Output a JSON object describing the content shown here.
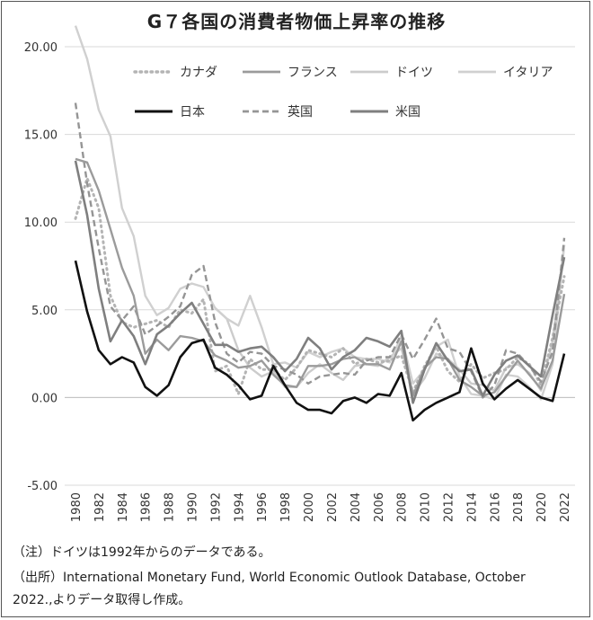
{
  "notes": {
    "note1": "（注）ドイツは1992年からのデータである。",
    "note2": "（出所）International Monetary Fund, World Economic Outlook Database, October",
    "note3": "2022.,よりデータ取得し作成。"
  },
  "chart_data": {
    "type": "line",
    "title": "G７各国の消費者物価上昇率の推移",
    "xlabel": "",
    "ylabel": "",
    "ylim": [
      -5,
      20
    ],
    "yticks": [
      "20.00",
      "15.00",
      "10.00",
      "5.00",
      "0.00",
      "-5.00"
    ],
    "xticks": [
      "1980",
      "1982",
      "1984",
      "1986",
      "1988",
      "1990",
      "1992",
      "1994",
      "1996",
      "1998",
      "2000",
      "2002",
      "2004",
      "2006",
      "2008",
      "2010",
      "2012",
      "2014",
      "2016",
      "2018",
      "2020",
      "2022"
    ],
    "x": [
      1980,
      1981,
      1982,
      1983,
      1984,
      1985,
      1986,
      1987,
      1988,
      1989,
      1990,
      1991,
      1992,
      1993,
      1994,
      1995,
      1996,
      1997,
      1998,
      1999,
      2000,
      2001,
      2002,
      2003,
      2004,
      2005,
      2006,
      2007,
      2008,
      2009,
      2010,
      2011,
      2012,
      2013,
      2014,
      2015,
      2016,
      2017,
      2018,
      2019,
      2020,
      2021,
      2022
    ],
    "series": [
      {
        "name": "カナダ",
        "color": "#b4b4b4",
        "dash": "dot",
        "width": 3,
        "values": [
          10.2,
          12.5,
          10.8,
          5.8,
          4.3,
          4.0,
          4.2,
          4.4,
          4.0,
          5.0,
          4.8,
          5.6,
          1.5,
          1.8,
          0.2,
          2.2,
          1.6,
          1.6,
          1.0,
          1.7,
          2.7,
          2.5,
          2.3,
          2.8,
          1.9,
          2.2,
          2.0,
          2.1,
          2.4,
          0.3,
          1.8,
          2.9,
          1.5,
          0.9,
          1.9,
          1.1,
          1.4,
          1.6,
          2.3,
          1.9,
          0.7,
          3.4,
          6.9
        ]
      },
      {
        "name": "フランス",
        "color": "#9b9b9b",
        "dash": "solid",
        "width": 2.4,
        "values": [
          13.6,
          13.4,
          11.8,
          9.6,
          7.4,
          5.8,
          2.5,
          3.3,
          2.7,
          3.5,
          3.4,
          3.2,
          2.4,
          2.1,
          1.7,
          1.8,
          2.1,
          1.3,
          0.7,
          0.6,
          1.8,
          1.8,
          1.9,
          2.2,
          2.3,
          1.9,
          1.9,
          1.6,
          3.2,
          0.1,
          1.7,
          2.3,
          2.2,
          1.0,
          0.6,
          0.1,
          0.3,
          1.2,
          2.1,
          1.3,
          0.5,
          2.1,
          5.9
        ]
      },
      {
        "name": "ドイツ",
        "color": "#cccccc",
        "dash": "solid",
        "width": 2.4,
        "values": [
          null,
          null,
          null,
          null,
          null,
          null,
          null,
          null,
          null,
          null,
          null,
          null,
          5.1,
          4.5,
          2.7,
          1.7,
          1.2,
          1.5,
          0.6,
          0.6,
          1.4,
          1.9,
          1.4,
          1.0,
          1.8,
          1.9,
          1.8,
          2.3,
          2.8,
          0.2,
          1.1,
          2.5,
          2.2,
          1.6,
          0.8,
          0.7,
          0.4,
          1.7,
          1.9,
          1.4,
          0.4,
          3.2,
          8.7
        ]
      },
      {
        "name": "イタリア",
        "color": "#d0d0d0",
        "dash": "solid",
        "width": 2.4,
        "values": [
          21.2,
          19.3,
          16.4,
          14.9,
          10.8,
          9.2,
          5.8,
          4.7,
          5.1,
          6.2,
          6.5,
          6.3,
          5.1,
          4.5,
          4.1,
          5.8,
          4.0,
          1.9,
          2.0,
          1.7,
          2.6,
          2.3,
          2.6,
          2.8,
          2.3,
          2.2,
          2.2,
          2.0,
          3.5,
          0.8,
          1.6,
          2.9,
          3.3,
          1.2,
          0.2,
          0.1,
          -0.1,
          1.3,
          1.2,
          0.6,
          -0.1,
          1.9,
          8.7
        ]
      },
      {
        "name": "日本",
        "color": "#111111",
        "dash": "solid",
        "width": 2.6,
        "values": [
          7.8,
          4.9,
          2.7,
          1.9,
          2.3,
          2.0,
          0.6,
          0.1,
          0.7,
          2.3,
          3.1,
          3.3,
          1.7,
          1.3,
          0.7,
          -0.1,
          0.1,
          1.8,
          0.7,
          -0.3,
          -0.7,
          -0.7,
          -0.9,
          -0.2,
          0.0,
          -0.3,
          0.2,
          0.1,
          1.4,
          -1.3,
          -0.7,
          -0.3,
          0.0,
          0.3,
          2.8,
          0.8,
          -0.1,
          0.5,
          1.0,
          0.5,
          0.0,
          -0.2,
          2.5
        ]
      },
      {
        "name": "英国",
        "color": "#959595",
        "dash": "dash",
        "width": 2.4,
        "values": [
          16.8,
          12.2,
          8.5,
          5.2,
          4.4,
          5.2,
          3.6,
          4.1,
          4.6,
          5.2,
          7.0,
          7.5,
          4.3,
          2.5,
          2.0,
          2.6,
          2.5,
          1.8,
          1.6,
          1.3,
          0.8,
          1.2,
          1.3,
          1.4,
          1.3,
          2.1,
          2.3,
          2.3,
          3.6,
          2.2,
          3.3,
          4.5,
          2.8,
          2.6,
          1.5,
          0.0,
          0.7,
          2.7,
          2.5,
          1.8,
          0.9,
          2.6,
          9.1
        ]
      },
      {
        "name": "米国",
        "color": "#7f7f7f",
        "dash": "solid",
        "width": 2.6,
        "values": [
          13.5,
          10.4,
          6.2,
          3.2,
          4.4,
          3.5,
          1.9,
          3.6,
          4.1,
          4.8,
          5.4,
          4.2,
          3.0,
          3.0,
          2.6,
          2.8,
          2.9,
          2.3,
          1.5,
          2.2,
          3.4,
          2.8,
          1.6,
          2.3,
          2.7,
          3.4,
          3.2,
          2.9,
          3.8,
          -0.3,
          1.6,
          3.1,
          2.1,
          1.5,
          1.6,
          0.1,
          1.3,
          2.1,
          2.4,
          1.8,
          1.2,
          4.7,
          8.0
        ]
      }
    ]
  }
}
